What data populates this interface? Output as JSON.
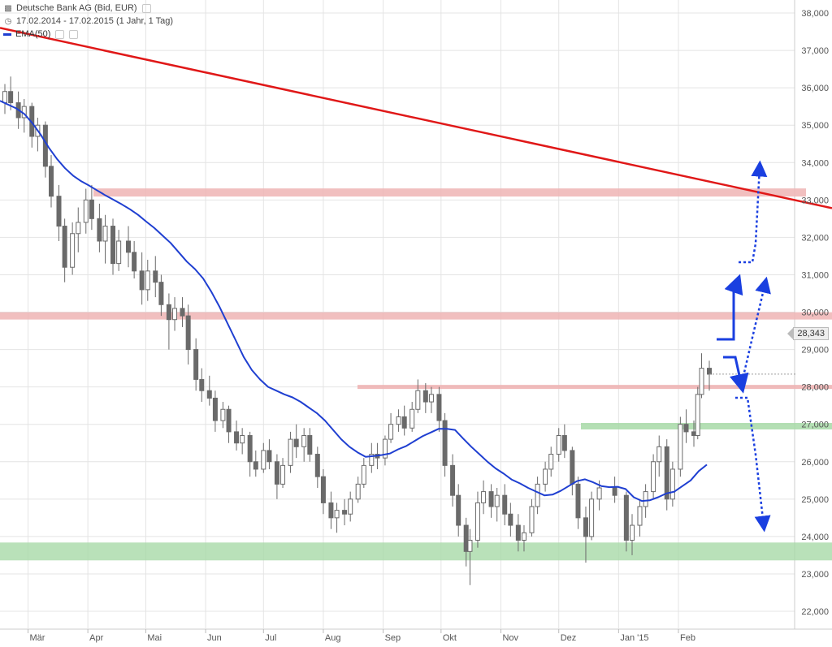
{
  "header": {
    "title": "Deutsche Bank AG (Bid, EUR)",
    "period": "17.02.2014 - 17.02.2015 (1 Jahr, 1 Tag)",
    "indicator": "EMA(50)"
  },
  "colors": {
    "candle": "#6a6a6a",
    "ema": "#1f3fd1",
    "trendline": "#e01818",
    "resistance_zone": "#eeb4b4",
    "support_zone": "#a7d9a7",
    "arrows": "#1a3fe0",
    "grid": "#e4e4e4"
  },
  "last_price_label": "28,343",
  "chart_data": {
    "type": "candlestick",
    "title": "Deutsche Bank AG (Bid, EUR)",
    "x_range": [
      "2014-02-17",
      "2015-02-17"
    ],
    "ylim": [
      21.5,
      38.3
    ],
    "y_ticks": [
      "22,000",
      "23,000",
      "24,000",
      "25,000",
      "26,000",
      "27,000",
      "28,000",
      "29,000",
      "30,000",
      "31,000",
      "32,000",
      "33,000",
      "34,000",
      "35,000",
      "36,000",
      "37,000",
      "38,000"
    ],
    "x_ticks": [
      "Mär",
      "Apr",
      "Mai",
      "Jun",
      "Jul",
      "Aug",
      "Sep",
      "Okt",
      "Nov",
      "Dez",
      "Jan '15",
      "Feb"
    ],
    "grid": true,
    "series": [
      {
        "name": "EMA(50)",
        "type": "line",
        "points": [
          [
            0,
            35.65
          ],
          [
            10,
            35.55
          ],
          [
            20,
            35.45
          ],
          [
            30,
            35.3
          ],
          [
            40,
            35.05
          ],
          [
            50,
            34.75
          ],
          [
            60,
            34.4
          ],
          [
            70,
            34.1
          ],
          [
            80,
            33.85
          ],
          [
            90,
            33.65
          ],
          [
            100,
            33.5
          ],
          [
            110,
            33.38
          ],
          [
            120,
            33.25
          ],
          [
            130,
            33.12
          ],
          [
            140,
            33.0
          ],
          [
            150,
            32.88
          ],
          [
            160,
            32.75
          ],
          [
            170,
            32.6
          ],
          [
            180,
            32.42
          ],
          [
            190,
            32.25
          ],
          [
            200,
            32.05
          ],
          [
            210,
            31.85
          ],
          [
            220,
            31.6
          ],
          [
            230,
            31.35
          ],
          [
            240,
            31.15
          ],
          [
            250,
            30.9
          ],
          [
            260,
            30.55
          ],
          [
            270,
            30.15
          ],
          [
            280,
            29.7
          ],
          [
            290,
            29.25
          ],
          [
            300,
            28.8
          ],
          [
            310,
            28.45
          ],
          [
            320,
            28.2
          ],
          [
            330,
            28.0
          ],
          [
            340,
            27.9
          ],
          [
            350,
            27.8
          ],
          [
            360,
            27.72
          ],
          [
            370,
            27.6
          ],
          [
            380,
            27.45
          ],
          [
            390,
            27.3
          ],
          [
            400,
            27.1
          ],
          [
            410,
            26.85
          ],
          [
            420,
            26.6
          ],
          [
            430,
            26.4
          ],
          [
            440,
            26.25
          ],
          [
            450,
            26.13
          ],
          [
            460,
            26.15
          ],
          [
            470,
            26.18
          ],
          [
            480,
            26.22
          ],
          [
            490,
            26.33
          ],
          [
            500,
            26.42
          ],
          [
            510,
            26.55
          ],
          [
            520,
            26.68
          ],
          [
            530,
            26.78
          ],
          [
            540,
            26.88
          ],
          [
            550,
            26.88
          ],
          [
            560,
            26.85
          ],
          [
            570,
            26.62
          ],
          [
            580,
            26.4
          ],
          [
            590,
            26.2
          ],
          [
            600,
            26.0
          ],
          [
            610,
            25.82
          ],
          [
            620,
            25.68
          ],
          [
            630,
            25.52
          ],
          [
            640,
            25.42
          ],
          [
            650,
            25.3
          ],
          [
            660,
            25.2
          ],
          [
            670,
            25.1
          ],
          [
            680,
            25.12
          ],
          [
            690,
            25.22
          ],
          [
            700,
            25.35
          ],
          [
            710,
            25.48
          ],
          [
            720,
            25.53
          ],
          [
            730,
            25.45
          ],
          [
            740,
            25.35
          ],
          [
            750,
            25.32
          ],
          [
            760,
            25.33
          ],
          [
            770,
            25.27
          ],
          [
            780,
            25.05
          ],
          [
            790,
            24.95
          ],
          [
            800,
            24.97
          ],
          [
            810,
            25.05
          ],
          [
            820,
            25.15
          ],
          [
            830,
            25.2
          ],
          [
            840,
            25.35
          ],
          [
            850,
            25.5
          ],
          [
            860,
            25.75
          ],
          [
            870,
            25.92
          ]
        ]
      },
      {
        "name": "Trendlinie",
        "type": "line",
        "points": [
          [
            0,
            37.6
          ],
          [
            1024,
            32.78
          ]
        ]
      }
    ],
    "candles": [
      [
        "2014-02-17",
        35.6,
        36.1,
        35.3,
        35.9
      ],
      [
        "2014-02-20",
        35.9,
        36.3,
        35.4,
        35.6
      ],
      [
        "2014-02-24",
        35.6,
        35.9,
        34.9,
        35.2
      ],
      [
        "2014-02-27",
        35.2,
        35.7,
        34.8,
        35.5
      ],
      [
        "2014-03-03",
        35.5,
        35.6,
        34.4,
        34.7
      ],
      [
        "2014-03-06",
        34.7,
        35.2,
        34.3,
        35.0
      ],
      [
        "2014-03-10",
        35.0,
        35.1,
        33.6,
        33.9
      ],
      [
        "2014-03-13",
        33.9,
        34.2,
        32.8,
        33.1
      ],
      [
        "2014-03-17",
        33.1,
        33.4,
        31.9,
        32.3
      ],
      [
        "2014-03-20",
        32.3,
        32.5,
        30.8,
        31.2
      ],
      [
        "2014-03-24",
        31.2,
        32.4,
        31.0,
        32.1
      ],
      [
        "2014-03-27",
        32.1,
        32.8,
        31.6,
        32.4
      ],
      [
        "2014-03-31",
        32.4,
        33.3,
        32.1,
        33.0
      ],
      [
        "2014-04-03",
        33.0,
        33.4,
        32.2,
        32.5
      ],
      [
        "2014-04-07",
        32.5,
        32.9,
        31.6,
        31.9
      ],
      [
        "2014-04-10",
        31.9,
        32.6,
        31.3,
        32.3
      ],
      [
        "2014-04-14",
        32.3,
        32.5,
        31.0,
        31.3
      ],
      [
        "2014-04-17",
        31.3,
        32.2,
        31.1,
        31.9
      ],
      [
        "2014-04-22",
        31.9,
        32.3,
        31.2,
        31.6
      ],
      [
        "2014-04-25",
        31.6,
        31.9,
        30.9,
        31.1
      ],
      [
        "2014-04-29",
        31.1,
        31.6,
        30.2,
        30.6
      ],
      [
        "2014-05-02",
        30.6,
        31.4,
        30.3,
        31.1
      ],
      [
        "2014-05-06",
        31.1,
        31.5,
        30.4,
        30.8
      ],
      [
        "2014-05-09",
        30.8,
        31.0,
        29.9,
        30.2
      ],
      [
        "2014-05-13",
        30.2,
        30.5,
        29.0,
        29.8
      ],
      [
        "2014-05-16",
        29.8,
        30.4,
        29.5,
        30.1
      ],
      [
        "2014-05-20",
        30.1,
        30.4,
        29.6,
        29.9
      ],
      [
        "2014-05-23",
        29.9,
        30.2,
        28.6,
        29.0
      ],
      [
        "2014-05-27",
        29.0,
        29.3,
        27.9,
        28.2
      ],
      [
        "2014-05-30",
        28.2,
        28.5,
        27.6,
        27.9
      ],
      [
        "2014-06-03",
        27.9,
        28.3,
        27.5,
        27.7
      ],
      [
        "2014-06-06",
        27.7,
        27.9,
        26.8,
        27.1
      ],
      [
        "2014-06-10",
        27.1,
        27.6,
        26.9,
        27.4
      ],
      [
        "2014-06-13",
        27.4,
        27.5,
        26.5,
        26.8
      ],
      [
        "2014-06-17",
        26.8,
        27.1,
        26.3,
        26.5
      ],
      [
        "2014-06-20",
        26.5,
        26.9,
        26.2,
        26.7
      ],
      [
        "2014-06-24",
        26.7,
        26.8,
        25.6,
        26.0
      ],
      [
        "2014-06-27",
        26.0,
        26.3,
        25.6,
        25.8
      ],
      [
        "2014-07-01",
        25.8,
        26.5,
        25.7,
        26.3
      ],
      [
        "2014-07-04",
        26.3,
        26.6,
        25.8,
        26.0
      ],
      [
        "2014-07-08",
        26.0,
        26.2,
        25.0,
        25.4
      ],
      [
        "2014-07-11",
        25.4,
        26.1,
        25.3,
        25.9
      ],
      [
        "2014-07-15",
        25.9,
        26.8,
        25.7,
        26.6
      ],
      [
        "2014-07-18",
        26.6,
        27.0,
        26.1,
        26.4
      ],
      [
        "2014-07-22",
        26.4,
        26.9,
        26.0,
        26.7
      ],
      [
        "2014-07-25",
        26.7,
        26.9,
        26.0,
        26.2
      ],
      [
        "2014-07-29",
        26.2,
        26.4,
        25.3,
        25.6
      ],
      [
        "2014-08-01",
        25.6,
        25.8,
        24.6,
        24.9
      ],
      [
        "2014-08-05",
        24.9,
        25.2,
        24.2,
        24.5
      ],
      [
        "2014-08-08",
        24.5,
        24.9,
        24.1,
        24.7
      ],
      [
        "2014-08-12",
        24.7,
        25.0,
        24.3,
        24.6
      ],
      [
        "2014-08-15",
        24.6,
        25.2,
        24.4,
        25.0
      ],
      [
        "2014-08-19",
        25.0,
        25.6,
        24.9,
        25.4
      ],
      [
        "2014-08-22",
        25.4,
        26.1,
        25.3,
        25.9
      ],
      [
        "2014-08-26",
        25.9,
        26.5,
        25.7,
        26.2
      ],
      [
        "2014-08-29",
        26.2,
        26.5,
        25.8,
        26.1
      ],
      [
        "2014-09-02",
        26.1,
        26.7,
        25.9,
        26.6
      ],
      [
        "2014-09-05",
        26.6,
        27.3,
        26.5,
        27.0
      ],
      [
        "2014-09-09",
        27.0,
        27.4,
        26.8,
        27.2
      ],
      [
        "2014-09-12",
        27.2,
        27.5,
        26.7,
        26.9
      ],
      [
        "2014-09-16",
        26.9,
        27.6,
        26.8,
        27.4
      ],
      [
        "2014-09-19",
        27.4,
        28.2,
        27.3,
        27.9
      ],
      [
        "2014-09-23",
        27.9,
        28.1,
        27.3,
        27.6
      ],
      [
        "2014-09-26",
        27.6,
        28.0,
        27.3,
        27.8
      ],
      [
        "2014-09-30",
        27.8,
        28.0,
        26.8,
        27.1
      ],
      [
        "2014-10-03",
        27.1,
        27.3,
        25.6,
        25.9
      ],
      [
        "2014-10-07",
        25.9,
        26.2,
        24.8,
        25.1
      ],
      [
        "2014-10-10",
        25.1,
        25.4,
        24.0,
        24.3
      ],
      [
        "2014-10-14",
        24.3,
        24.5,
        23.2,
        23.6
      ],
      [
        "2014-10-16",
        23.6,
        24.2,
        22.7,
        23.9
      ],
      [
        "2014-10-20",
        23.9,
        25.2,
        23.7,
        24.9
      ],
      [
        "2014-10-23",
        24.9,
        25.5,
        24.6,
        25.2
      ],
      [
        "2014-10-27",
        25.2,
        25.4,
        24.5,
        24.8
      ],
      [
        "2014-10-30",
        24.8,
        25.3,
        24.4,
        25.1
      ],
      [
        "2014-11-03",
        25.1,
        25.4,
        24.3,
        24.6
      ],
      [
        "2014-11-06",
        24.6,
        24.9,
        24.0,
        24.3
      ],
      [
        "2014-11-10",
        24.3,
        24.6,
        23.6,
        23.9
      ],
      [
        "2014-11-13",
        23.9,
        24.3,
        23.6,
        24.1
      ],
      [
        "2014-11-17",
        24.1,
        25.0,
        24.0,
        24.8
      ],
      [
        "2014-11-20",
        24.8,
        25.6,
        24.6,
        25.4
      ],
      [
        "2014-11-24",
        25.4,
        26.0,
        25.2,
        25.8
      ],
      [
        "2014-11-27",
        25.8,
        26.4,
        25.6,
        26.2
      ],
      [
        "2014-12-01",
        26.2,
        26.9,
        26.0,
        26.7
      ],
      [
        "2014-12-04",
        26.7,
        27.0,
        26.1,
        26.3
      ],
      [
        "2014-12-08",
        26.3,
        26.4,
        25.1,
        25.4
      ],
      [
        "2014-12-11",
        25.4,
        25.6,
        24.2,
        24.5
      ],
      [
        "2014-12-15",
        24.5,
        24.8,
        23.3,
        24.0
      ],
      [
        "2014-12-18",
        24.0,
        25.2,
        23.9,
        25.0
      ],
      [
        "2014-12-22",
        25.0,
        25.5,
        24.7,
        25.3
      ],
      [
        "2014-12-30",
        25.3,
        25.6,
        24.9,
        25.1
      ],
      [
        "2015-01-05",
        25.1,
        25.2,
        23.6,
        23.9
      ],
      [
        "2015-01-08",
        23.9,
        24.6,
        23.5,
        24.3
      ],
      [
        "2015-01-12",
        24.3,
        25.0,
        24.0,
        24.8
      ],
      [
        "2015-01-15",
        24.8,
        25.4,
        24.5,
        25.2
      ],
      [
        "2015-01-19",
        25.2,
        26.2,
        25.0,
        26.0
      ],
      [
        "2015-01-22",
        26.0,
        26.7,
        25.6,
        26.4
      ],
      [
        "2015-01-26",
        26.4,
        26.6,
        24.7,
        25.0
      ],
      [
        "2015-01-29",
        25.0,
        26.0,
        24.8,
        25.8
      ],
      [
        "2015-02-02",
        25.8,
        27.2,
        25.6,
        27.0
      ],
      [
        "2015-02-05",
        27.0,
        27.4,
        26.5,
        26.8
      ],
      [
        "2015-02-09",
        26.8,
        27.1,
        26.4,
        26.7
      ],
      [
        "2015-02-11",
        26.7,
        28.0,
        26.6,
        27.8
      ],
      [
        "2015-02-13",
        27.8,
        28.9,
        27.7,
        28.5
      ],
      [
        "2015-02-17",
        28.5,
        28.7,
        27.9,
        28.34
      ]
    ],
    "zones": [
      {
        "type": "resistance",
        "center": 33.2
      },
      {
        "type": "resistance",
        "center": 29.9
      },
      {
        "type": "resistance",
        "center": 28.0
      },
      {
        "type": "support",
        "center": 26.95
      },
      {
        "type": "support",
        "center": 23.6
      }
    ],
    "last_price": 28.343
  }
}
